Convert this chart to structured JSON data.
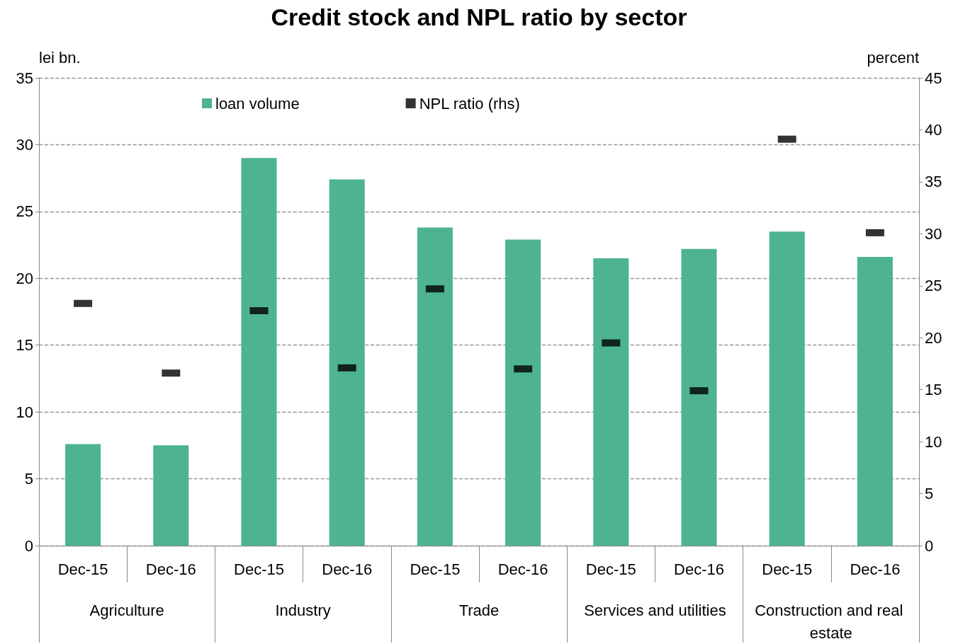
{
  "chart_data": {
    "type": "bar",
    "title": "Credit stock and NPL ratio by sector",
    "ylabel": "lei bn.",
    "y2label": "percent",
    "categories": [
      "Dec-15",
      "Dec-16",
      "Dec-15",
      "Dec-16",
      "Dec-15",
      "Dec-16",
      "Dec-15",
      "Dec-16",
      "Dec-15",
      "Dec-16"
    ],
    "annotations": [
      "Agriculture",
      "Industry",
      "Trade",
      "Services and utilities",
      "Construction and real estate"
    ],
    "series": [
      {
        "name": "loan volume",
        "color": "#4eb391",
        "values": [
          7.6,
          7.5,
          29.0,
          27.4,
          23.8,
          22.9,
          21.5,
          22.2,
          23.5,
          21.6
        ]
      },
      {
        "name": "NPL ratio (rhs)",
        "type": "scatter",
        "axis": "y2",
        "color": "#000000",
        "values": [
          23.3,
          16.6,
          22.6,
          17.1,
          24.7,
          17.0,
          19.5,
          14.9,
          39.1,
          30.1
        ]
      }
    ],
    "ylim": [
      0,
      35
    ],
    "yticks": [
      0,
      5,
      10,
      15,
      20,
      25,
      30,
      35
    ],
    "y2lim": [
      0,
      45
    ],
    "y2ticks": [
      0,
      5,
      10,
      15,
      20,
      25,
      30,
      35,
      40,
      45
    ],
    "grid": "y",
    "legend": "top",
    "marker": "square"
  }
}
